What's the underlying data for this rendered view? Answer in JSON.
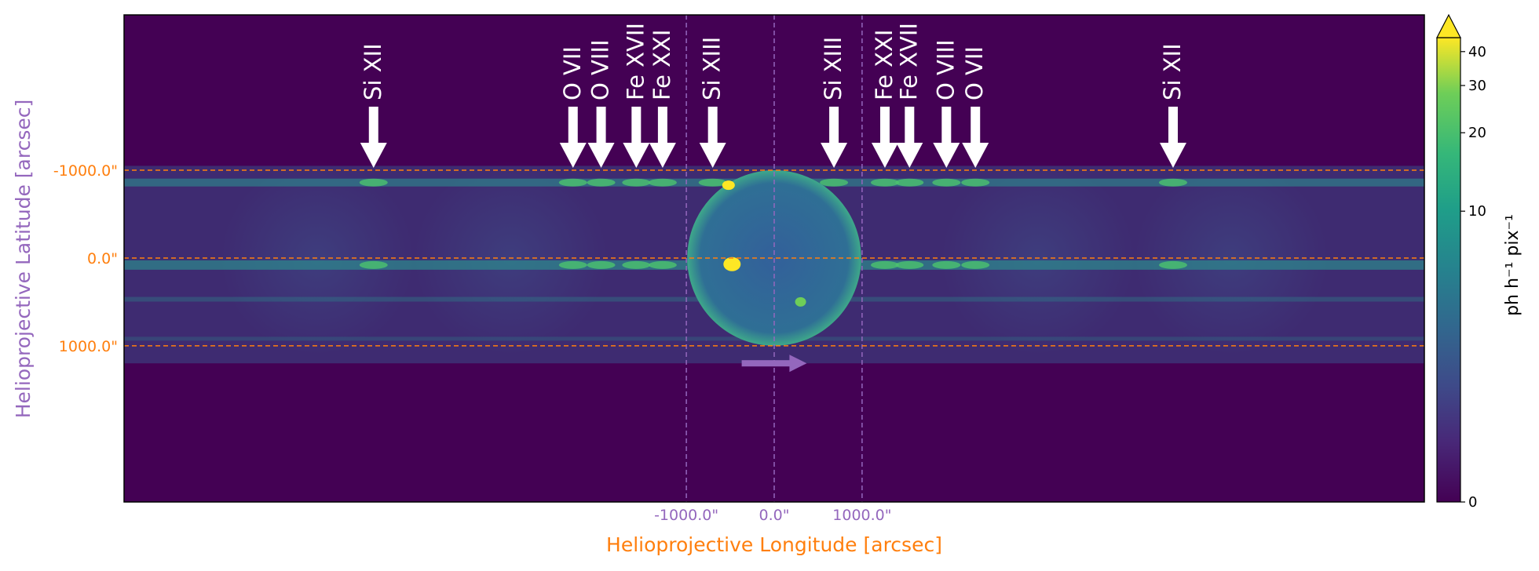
{
  "chart_data": {
    "type": "heatmap",
    "title": "",
    "xlabel": "Helioprojective Longitude [arcsec]",
    "ylabel": "Helioprojective Latitude [arcsec]",
    "xlim": [
      -7400,
      7400
    ],
    "ylim": [
      -2770,
      2780
    ],
    "y_inverted": true,
    "xticks": [
      {
        "value": -1000,
        "label": "-1000.0\""
      },
      {
        "value": 0,
        "label": "0.0\""
      },
      {
        "value": 1000,
        "label": "1000.0\""
      }
    ],
    "yticks": [
      {
        "value": -1000,
        "label": "-1000.0\""
      },
      {
        "value": 0,
        "label": "0.0\""
      },
      {
        "value": 1000,
        "label": "1000.0\""
      }
    ],
    "colorbar": {
      "label": "ph h⁻¹ pix⁻¹",
      "colormap": "viridis",
      "scale": "symlog",
      "extend": "max",
      "ticks": [
        {
          "value": 0,
          "label": "0"
        },
        {
          "value": 10,
          "label": "10"
        },
        {
          "value": 20,
          "label": "20"
        },
        {
          "value": 30,
          "label": "30"
        },
        {
          "value": 40,
          "label": "40"
        }
      ]
    },
    "guide_lines": {
      "vertical_x": [
        -1000,
        0,
        1000
      ],
      "horizontal_y": [
        -1000,
        0,
        1000
      ]
    },
    "spectral_lines": [
      {
        "label": "Si XII",
        "x": -4560
      },
      {
        "label": "O VII",
        "x": -2290
      },
      {
        "label": "O VIII",
        "x": -1970
      },
      {
        "label": "Fe XVII",
        "x": -1570
      },
      {
        "label": "Fe XXI",
        "x": -1270
      },
      {
        "label": "Si XIII",
        "x": -700
      },
      {
        "label": "Si XIII",
        "x": 680
      },
      {
        "label": "Fe XXI",
        "x": 1260
      },
      {
        "label": "Fe XVII",
        "x": 1540
      },
      {
        "label": "O VIII",
        "x": 1960
      },
      {
        "label": "O VII",
        "x": 2290
      },
      {
        "label": "Si XII",
        "x": 4540
      }
    ],
    "dispersion_arrow": {
      "from_x": -370,
      "to_x": 370,
      "y": 1200
    }
  },
  "colors": {
    "background": "#440154",
    "axis_label_orange": "#ff7f0e",
    "axis_label_purple": "#9467bd",
    "text_black": "#000000",
    "annotation_white": "#ffffff"
  }
}
